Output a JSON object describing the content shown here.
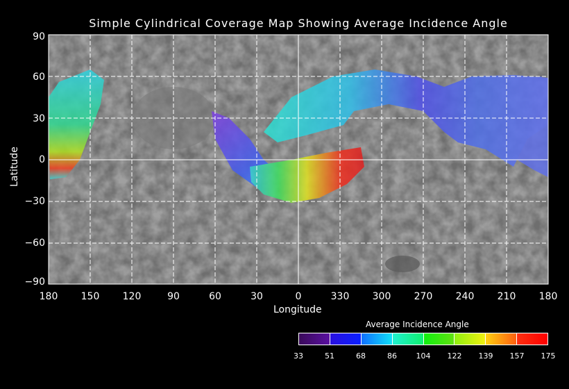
{
  "title": "Simple Cylindrical Coverage Map Showing Average Incidence Angle",
  "y_axis": {
    "label": "Latitude",
    "ticks": [
      "90",
      "60",
      "30",
      "0",
      "−30",
      "−60",
      "−90"
    ],
    "range": [
      -90,
      90
    ]
  },
  "x_axis": {
    "label": "Longitude",
    "ticks": [
      "180",
      "150",
      "120",
      "90",
      "60",
      "30",
      "0",
      "330",
      "300",
      "270",
      "240",
      "210",
      "180"
    ]
  },
  "colorbar": {
    "title": "Average Incidence Angle",
    "ticks": [
      "33",
      "51",
      "68",
      "86",
      "104",
      "122",
      "139",
      "157",
      "175"
    ],
    "segments": [
      [
        "#3a0a5a",
        "#5a10a0"
      ],
      [
        "#2a10e0",
        "#0a20ff"
      ],
      [
        "#1070ff",
        "#10e0f8"
      ],
      [
        "#20f0d0",
        "#10f070"
      ],
      [
        "#10f010",
        "#60e010"
      ],
      [
        "#90f010",
        "#f0f010"
      ],
      [
        "#ffd010",
        "#ff6010"
      ],
      [
        "#ff3010",
        "#ff0000"
      ]
    ]
  },
  "colors": {
    "background": "#000000",
    "map_gray": "#6e6e6e",
    "grid": "#ffffff"
  }
}
